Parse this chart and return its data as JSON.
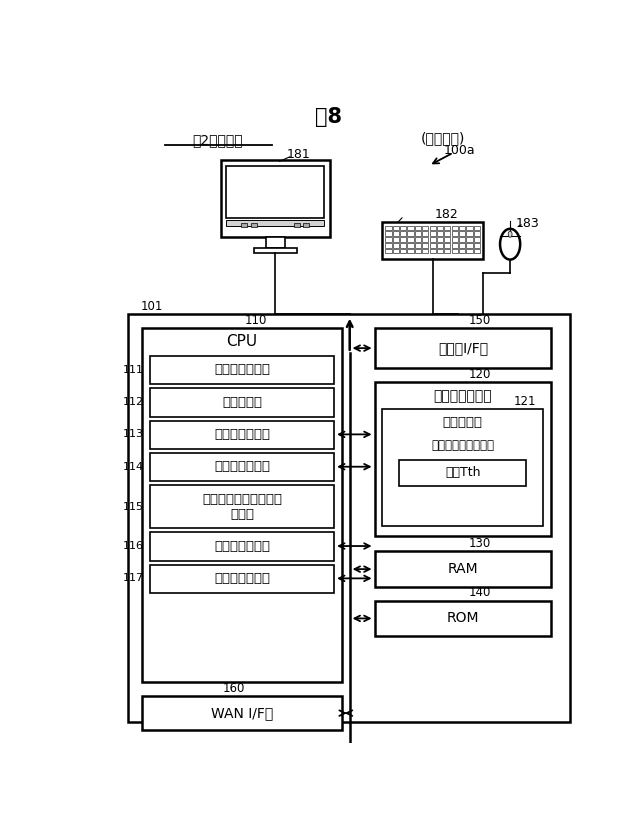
{
  "title": "図8",
  "subtitle1": "第2実施形態",
  "subtitle2": "(管理装置)",
  "label_100a": "100a",
  "label_101": "101",
  "label_110": "110",
  "label_150": "150",
  "label_120": "120",
  "label_121": "121",
  "label_130": "130",
  "label_140": "140",
  "label_160": "160",
  "label_181": "181",
  "label_182": "182",
  "label_183": "183",
  "cpu_label": "CPU",
  "io_label": "入出力I/F部",
  "hdd_label": "ハードディスク",
  "ram_label": "RAM",
  "rom_label": "ROM",
  "wan_label": "WAN I/F部",
  "cond_label": "条件格納部",
  "cond_sub": "駆付時間関連条件：",
  "thresh_label": "閾値Tth",
  "blocks": [
    {
      "id": "111",
      "label": "配車要求受信部"
    },
    {
      "id": "112",
      "label": "役割特定部"
    },
    {
      "id": "113",
      "label": "配車場所特定部"
    },
    {
      "id": "114",
      "label": "車両台数特定部"
    },
    {
      "id": "115",
      "label": "ブロードキャスト命令\n送信部"
    },
    {
      "id": "116",
      "label": "駆付車両決定部"
    },
    {
      "id": "117",
      "label": "駆付命令送信部"
    }
  ],
  "bg_color": "#ffffff",
  "box_color": "#000000",
  "text_color": "#000000"
}
